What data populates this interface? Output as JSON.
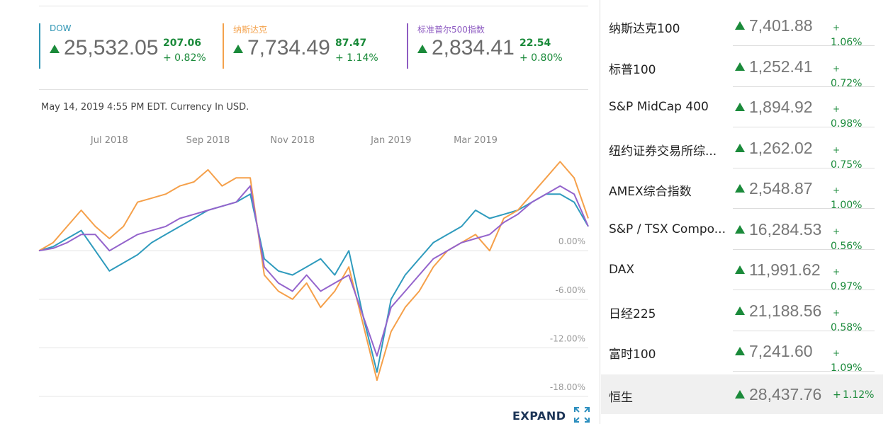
{
  "indices": [
    {
      "name": "DOW",
      "value": "25,532.05",
      "change": "207.06",
      "pct": "+ 0.82%",
      "color": "#2f95b4"
    },
    {
      "name": "纳斯达克",
      "value": "7,734.49",
      "change": "87.47",
      "pct": "+ 1.14%",
      "color": "#f4a24c"
    },
    {
      "name": "标准普尔500指数",
      "value": "2,834.41",
      "change": "22.54",
      "pct": "+ 0.80%",
      "color": "#8e5cc2"
    }
  ],
  "timestamp": "May 14, 2019 4:55 PM EDT. Currency In USD.",
  "expand": "EXPAND",
  "chart_data": {
    "type": "line",
    "categories": [
      null,
      null,
      null,
      null,
      null,
      "Jul 2018",
      null,
      null,
      null,
      null,
      null,
      null,
      "Sep 2018",
      null,
      null,
      null,
      null,
      null,
      "Nov 2018",
      null,
      null,
      null,
      null,
      null,
      null,
      "Jan 2019",
      null,
      null,
      null,
      null,
      null,
      "Mar 2019",
      null,
      null,
      null,
      null,
      null,
      null,
      null,
      null
    ],
    "series": [
      {
        "name": "DOW",
        "color": "#2f9bbd",
        "values": [
          0,
          0.5,
          1.5,
          2.5,
          0,
          -2.5,
          -1.5,
          -0.5,
          1,
          2,
          3,
          4,
          5,
          5.5,
          6,
          7,
          -1,
          -2.5,
          -3,
          -2,
          -1,
          -3,
          0,
          -8,
          -15,
          -6,
          -3,
          -1,
          1,
          2,
          3,
          5,
          4,
          4.5,
          5,
          6,
          7,
          7,
          6,
          3
        ]
      },
      {
        "name": "纳斯达克",
        "color": "#f5a04a",
        "values": [
          0,
          1,
          3,
          5,
          3,
          1.5,
          3,
          6,
          6.5,
          7,
          8,
          8.5,
          10,
          8,
          9,
          9,
          -3,
          -5,
          -6,
          -4,
          -7,
          -5,
          -2,
          -9,
          -16,
          -10,
          -7,
          -5,
          -2,
          0,
          1,
          2,
          0,
          4,
          5,
          7,
          9,
          11,
          9,
          4
        ]
      },
      {
        "name": "标准普尔500指数",
        "color": "#9464cc",
        "values": [
          0,
          0.3,
          1,
          2,
          2,
          0,
          1,
          2,
          2.5,
          3,
          4,
          4.5,
          5,
          5.5,
          6,
          8,
          -2,
          -4,
          -5,
          -3,
          -5,
          -4,
          -3,
          -8,
          -13,
          -7,
          -5,
          -3,
          -1,
          0,
          1,
          1.5,
          2,
          3.5,
          4.5,
          6,
          7,
          8,
          7,
          3
        ]
      }
    ],
    "ylim": [
      -18,
      12
    ],
    "yticks": [
      {
        "value": 0,
        "label": "0.00%"
      },
      {
        "value": -6,
        "label": "-6.00%"
      },
      {
        "value": -12,
        "label": "-12.00%"
      },
      {
        "value": -18,
        "label": "-18.00%"
      }
    ],
    "grid": true
  },
  "markets": [
    {
      "name": "纳斯达克100",
      "value": "7,401.88",
      "sign": "+",
      "pct": "1.06%"
    },
    {
      "name": "标普100",
      "value": "1,252.41",
      "sign": "+",
      "pct": "0.72%"
    },
    {
      "name": "S&P MidCap 400",
      "value": "1,894.92",
      "sign": "+",
      "pct": "0.98%"
    },
    {
      "name": "纽约证券交易所综...",
      "value": "1,262.02",
      "sign": "+",
      "pct": "0.75%"
    },
    {
      "name": "AMEX综合指数",
      "value": "2,548.87",
      "sign": "+",
      "pct": "1.00%"
    },
    {
      "name": "S&P / TSX Compo...",
      "value": "16,284.53",
      "sign": "+",
      "pct": "0.56%"
    },
    {
      "name": "DAX",
      "value": "11,991.62",
      "sign": "+",
      "pct": "0.97%"
    },
    {
      "name": "日经225",
      "value": "21,188.56",
      "sign": "+",
      "pct": "0.58%"
    },
    {
      "name": "富时100",
      "value": "7,241.60",
      "sign": "+",
      "pct": "1.09%"
    },
    {
      "name": "恒生",
      "value": "28,437.76",
      "sign": "+",
      "pct": "1.12%"
    }
  ]
}
